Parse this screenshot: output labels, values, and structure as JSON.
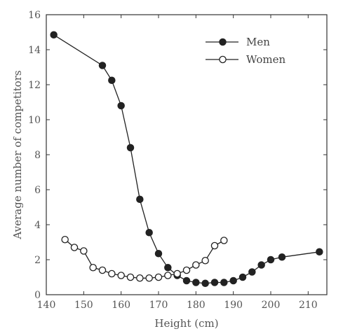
{
  "chart_data": {
    "type": "line",
    "xlabel": "Height (cm)",
    "ylabel": "Average number of competitors",
    "xlim": [
      140,
      215
    ],
    "ylim": [
      0,
      16
    ],
    "x_ticks": [
      140,
      150,
      160,
      170,
      180,
      190,
      200,
      210
    ],
    "y_ticks": [
      0,
      2,
      4,
      6,
      8,
      10,
      12,
      14,
      16
    ],
    "grid": false,
    "legend_position": "top-right",
    "series": [
      {
        "name": "Men",
        "marker": "filled-circle",
        "color": "#222222",
        "x": [
          142,
          155,
          157.5,
          160,
          162.5,
          165,
          167.5,
          170,
          172.5,
          175,
          177.5,
          180,
          182.5,
          185,
          187.5,
          190,
          192.5,
          195,
          197.5,
          200,
          203,
          213
        ],
        "y": [
          14.85,
          13.1,
          12.25,
          10.8,
          8.4,
          5.45,
          3.55,
          2.35,
          1.55,
          1.1,
          0.8,
          0.7,
          0.65,
          0.7,
          0.7,
          0.8,
          1.0,
          1.3,
          1.7,
          2.0,
          2.15,
          2.45
        ]
      },
      {
        "name": "Women",
        "marker": "open-circle",
        "color": "#222222",
        "x": [
          145,
          147.5,
          150,
          152.5,
          155,
          157.5,
          160,
          162.5,
          165,
          167.5,
          170,
          172.5,
          175,
          177.5,
          180,
          182.5,
          185,
          187.5
        ],
        "y": [
          3.15,
          2.7,
          2.5,
          1.55,
          1.4,
          1.2,
          1.1,
          1.0,
          0.95,
          0.95,
          1.0,
          1.1,
          1.2,
          1.4,
          1.7,
          1.95,
          2.8,
          3.1
        ]
      }
    ]
  }
}
